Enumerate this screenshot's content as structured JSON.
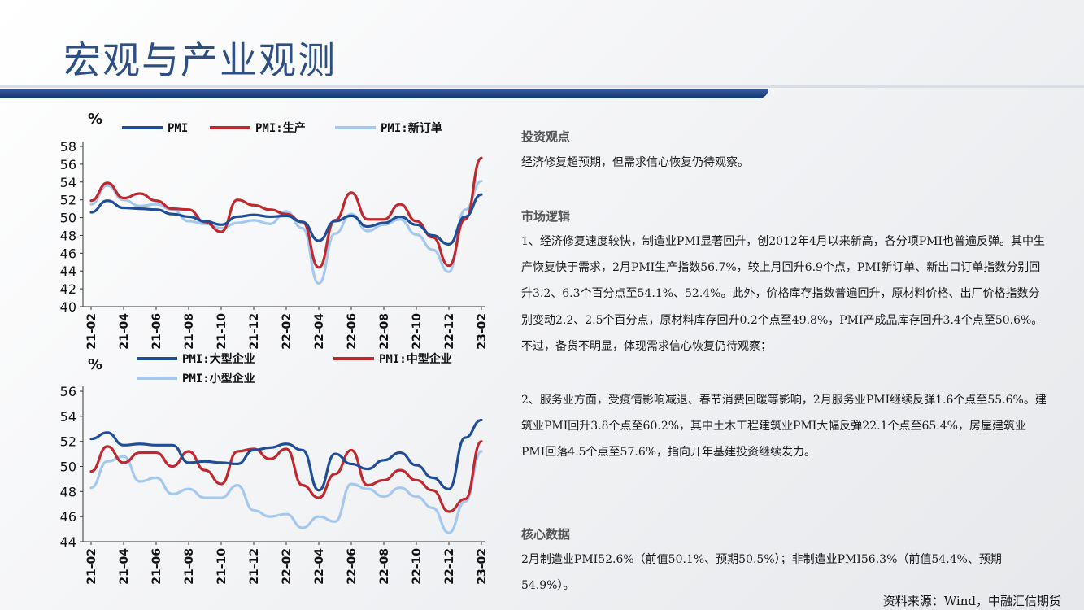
{
  "header": {
    "title": "宏观与产业观测"
  },
  "sections": {
    "view_head": "投资观点",
    "view_text": "经济修复超预期，但需求信心恢复仍待观察。",
    "logic_head": "市场逻辑",
    "logic_p1": "1、经济修复速度较快，制造业PMI显著回升，创2012年4月以来新高，各分项PMI也普遍反弹。其中生产恢复快于需求，2月PMI生产指数56.7%，较上月回升6.9个点，PMI新订单、新出口订单指数分别回升3.2、6.3个百分点至54.1%、52.4%。此外，价格库存指数普遍回升，原材料价格、出厂价格指数分别变动2.2、2.5个百分点，原材料库存回升0.2个点至49.8%，PMI产成品库存回升3.4个点至50.6%。不过，备货不明显，体现需求信心恢复仍待观察；",
    "logic_p2": "2、服务业方面，受疫情影响减退、春节消费回暖等影响，2月服务业PMI继续反弹1.6个点至55.6%。建筑业PMI回升3.8个点至60.2%，其中土木工程建筑业PMI大幅反弹22.1个点至65.4%，房屋建筑业PMI回落4.5个点至57.6%，指向开年基建投资继续发力。",
    "core_head": "核心数据",
    "core_text": "2月制造业PMI52.6%（前值50.1%、预期50.5%）；非制造业PMI56.3%（前值54.4%、预期54.9%）。"
  },
  "footer": {
    "source": "资料来源：Wind，中融汇信期货"
  },
  "chart_data": [
    {
      "type": "line",
      "unit": "%",
      "ylim": [
        40,
        58
      ],
      "yticks": [
        40,
        42,
        44,
        46,
        48,
        50,
        52,
        54,
        56,
        58
      ],
      "x": [
        "21-02",
        "21-03",
        "21-04",
        "21-05",
        "21-06",
        "21-07",
        "21-08",
        "21-09",
        "21-10",
        "21-11",
        "21-12",
        "22-01",
        "22-02",
        "22-03",
        "22-04",
        "22-05",
        "22-06",
        "22-07",
        "22-08",
        "22-09",
        "22-10",
        "22-11",
        "22-12",
        "23-01",
        "23-02"
      ],
      "xtick_labels": [
        "21-02",
        "21-04",
        "21-06",
        "21-08",
        "21-10",
        "21-12",
        "22-02",
        "22-04",
        "22-06",
        "22-08",
        "22-10",
        "22-12",
        "23-02"
      ],
      "series": [
        {
          "name": "PMI",
          "color": "#1f4e96",
          "values": [
            50.6,
            51.9,
            51.1,
            51.0,
            50.9,
            50.4,
            50.1,
            49.6,
            49.2,
            50.1,
            50.3,
            50.1,
            50.2,
            49.5,
            47.4,
            49.6,
            50.2,
            49.0,
            49.4,
            50.1,
            49.2,
            48.0,
            47.0,
            50.1,
            52.6
          ]
        },
        {
          "name": "PMI:生产",
          "color": "#c0282d",
          "values": [
            51.9,
            53.9,
            52.2,
            52.7,
            51.9,
            51.0,
            50.9,
            49.5,
            48.4,
            52.0,
            51.4,
            50.9,
            50.4,
            49.5,
            44.4,
            49.7,
            52.8,
            49.8,
            49.8,
            51.5,
            49.6,
            47.8,
            44.6,
            49.8,
            56.7
          ]
        },
        {
          "name": "PMI:新订单",
          "color": "#a4c8ee",
          "values": [
            51.5,
            53.6,
            52.0,
            51.3,
            51.5,
            50.9,
            49.6,
            49.3,
            48.8,
            49.4,
            49.7,
            49.3,
            50.7,
            48.8,
            42.6,
            48.2,
            50.4,
            48.5,
            49.2,
            49.8,
            48.1,
            46.4,
            43.9,
            50.9,
            54.1
          ]
        }
      ]
    },
    {
      "type": "line",
      "unit": "%",
      "ylim": [
        44,
        56
      ],
      "yticks": [
        44,
        46,
        48,
        50,
        52,
        54,
        56
      ],
      "x": [
        "21-02",
        "21-03",
        "21-04",
        "21-05",
        "21-06",
        "21-07",
        "21-08",
        "21-09",
        "21-10",
        "21-11",
        "21-12",
        "22-01",
        "22-02",
        "22-03",
        "22-04",
        "22-05",
        "22-06",
        "22-07",
        "22-08",
        "22-09",
        "22-10",
        "22-11",
        "22-12",
        "23-01",
        "23-02"
      ],
      "xtick_labels": [
        "21-02",
        "21-04",
        "21-06",
        "21-08",
        "21-10",
        "21-12",
        "22-02",
        "22-04",
        "22-06",
        "22-08",
        "22-10",
        "22-12",
        "23-02"
      ],
      "series": [
        {
          "name": "PMI:大型企业",
          "color": "#1f4e96",
          "values": [
            52.2,
            52.7,
            51.7,
            51.8,
            51.7,
            51.7,
            50.3,
            50.4,
            50.3,
            50.2,
            51.3,
            51.5,
            51.8,
            51.3,
            48.1,
            51.0,
            50.2,
            49.8,
            50.5,
            51.1,
            50.1,
            49.1,
            48.2,
            52.3,
            53.7
          ]
        },
        {
          "name": "PMI:中型企业",
          "color": "#c0282d",
          "values": [
            49.6,
            51.6,
            50.3,
            51.1,
            51.1,
            50.0,
            51.2,
            49.7,
            48.6,
            51.2,
            51.4,
            50.6,
            51.4,
            48.5,
            47.5,
            49.4,
            51.3,
            48.5,
            48.9,
            49.7,
            48.9,
            48.1,
            46.4,
            47.4,
            52.0
          ]
        },
        {
          "name": "PMI:小型企业",
          "color": "#a4c8ee",
          "values": [
            48.3,
            50.4,
            50.8,
            48.8,
            49.1,
            47.8,
            48.2,
            47.5,
            47.5,
            48.5,
            46.5,
            46.0,
            46.2,
            45.1,
            46.0,
            45.6,
            48.6,
            48.2,
            47.6,
            48.3,
            47.6,
            46.7,
            44.7,
            47.2,
            51.2
          ]
        }
      ]
    }
  ]
}
